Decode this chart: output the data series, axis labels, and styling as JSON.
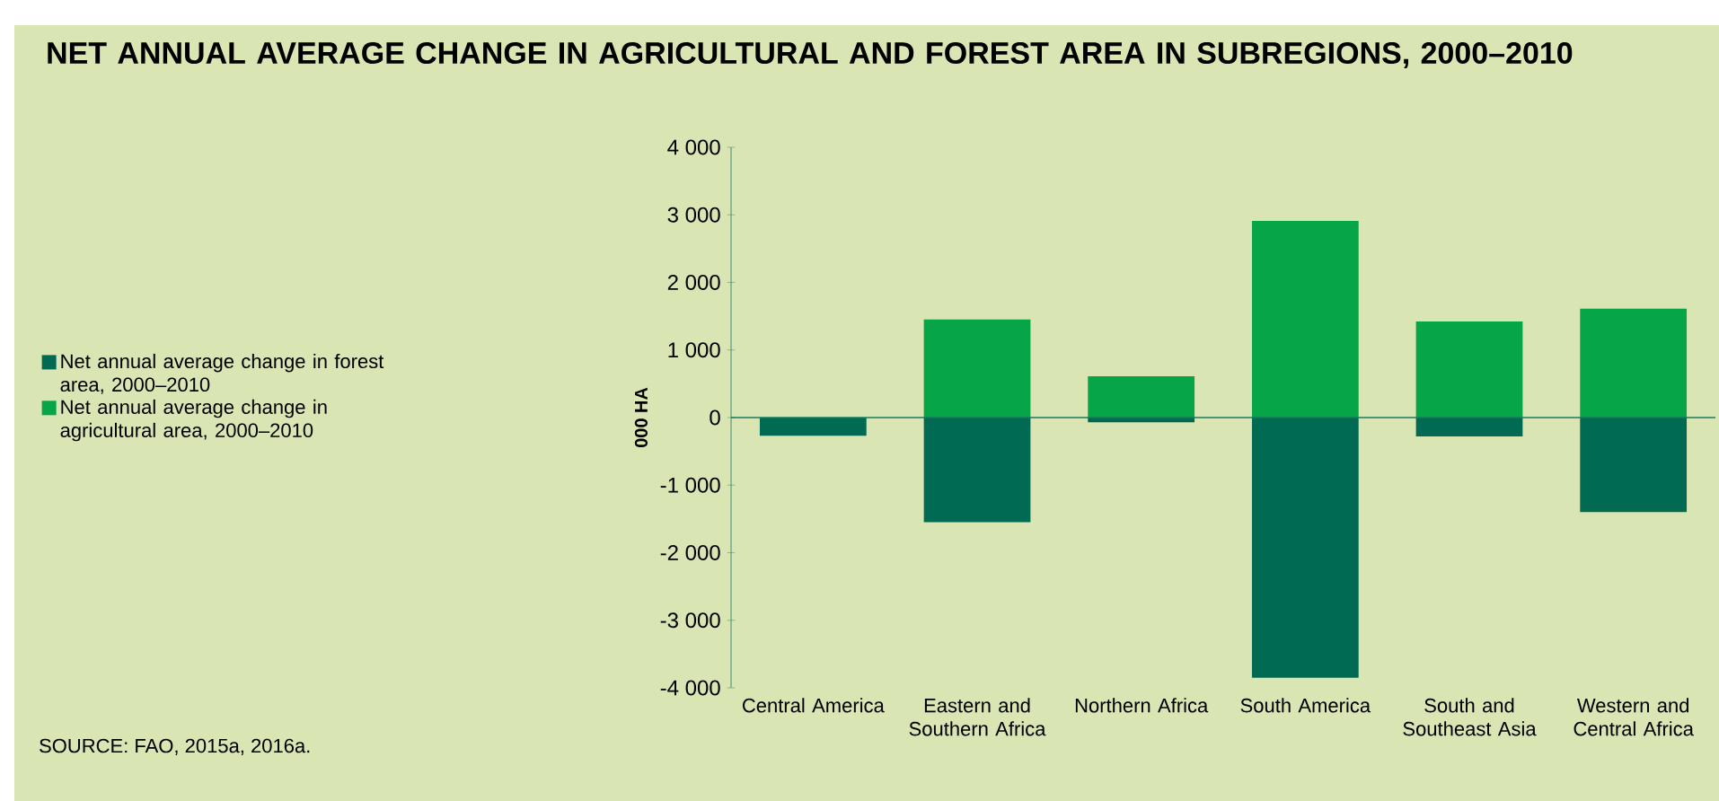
{
  "chart_data": {
    "type": "bar",
    "title": "NET ANNUAL AVERAGE CHANGE IN AGRICULTURAL AND FOREST AREA IN SUBREGIONS, 2000–2010",
    "categories": [
      "Central America",
      "Eastern and Southern Africa",
      "Northern Africa",
      "South America",
      "South and Southeast Asia",
      "Western and Central Africa"
    ],
    "series": [
      {
        "name": "Net annual average change in forest area, 2000–2010",
        "color": "#006b52",
        "values": [
          -270,
          -1550,
          -70,
          -3850,
          -280,
          -1400
        ]
      },
      {
        "name": "Net annual average change in agricultural area, 2000–2010",
        "color": "#05a548",
        "values": [
          null,
          1450,
          610,
          2910,
          1420,
          1610
        ]
      }
    ],
    "stacked": true,
    "ylabel": "000 HA",
    "ylim": [
      -4000,
      4000
    ],
    "yticks": [
      {
        "value": -4000,
        "label": "-4 000"
      },
      {
        "value": -3000,
        "label": "-3 000"
      },
      {
        "value": -2000,
        "label": "-2 000"
      },
      {
        "value": -1000,
        "label": "-1 000"
      },
      0,
      {
        "value": 1000,
        "label": "1 000"
      },
      {
        "value": 2000,
        "label": "2 000"
      },
      {
        "value": 3000,
        "label": "3 000"
      },
      {
        "value": 4000,
        "label": "4 000"
      }
    ],
    "legend": "left",
    "ref_lines": [
      {
        "axis": "y",
        "value": 0,
        "color": "#1a7a5c"
      }
    ],
    "annotations": [
      "SOURCE: FAO, 2015a, 2016a."
    ]
  }
}
